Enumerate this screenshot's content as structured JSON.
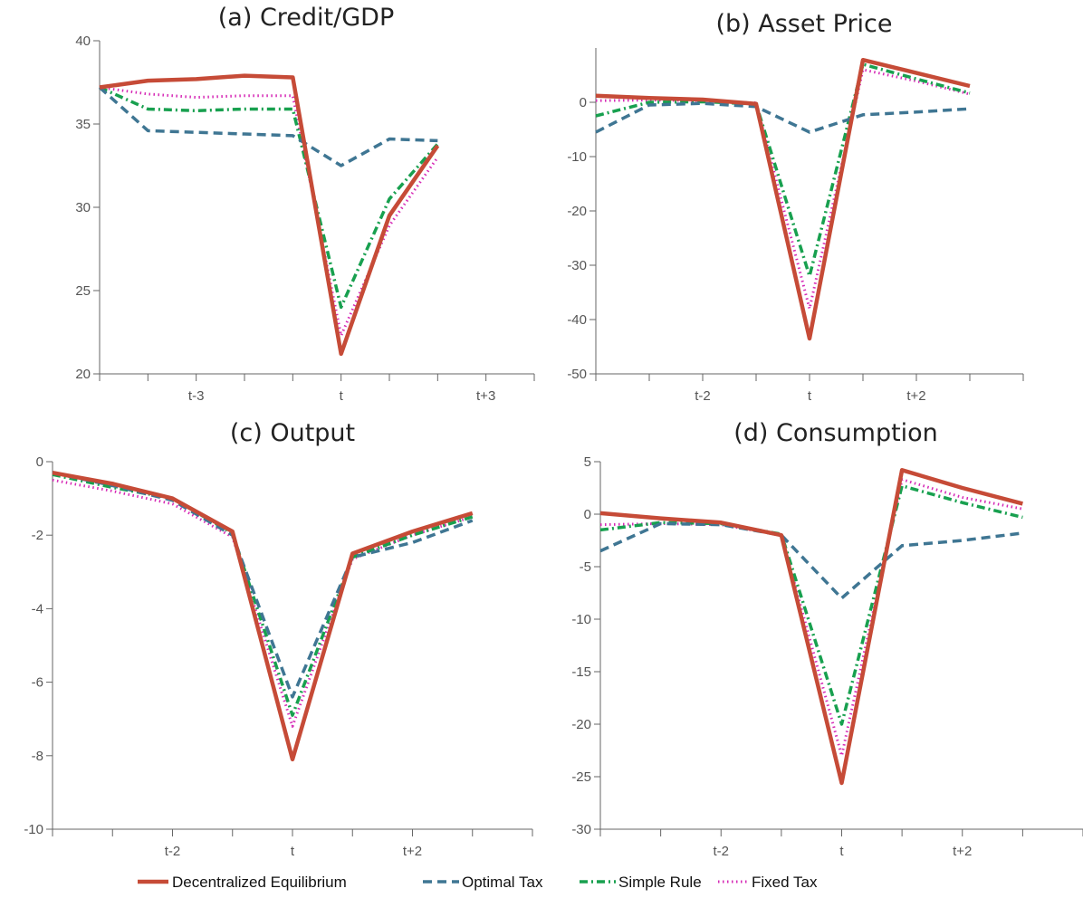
{
  "colors": {
    "decentralized": "#c64b37",
    "optimal": "#3f7693",
    "simple": "#18a04f",
    "fixed": "#d62ab6"
  },
  "legend": [
    {
      "key": "decentralized",
      "label": "Decentralized Equilibrium"
    },
    {
      "key": "optimal",
      "label": "Optimal Tax"
    },
    {
      "key": "simple",
      "label": "Simple Rule"
    },
    {
      "key": "fixed",
      "label": "Fixed Tax"
    }
  ],
  "chart_data": [
    {
      "type": "line",
      "title": "(a) Credit/GDP",
      "x": [
        -5,
        -4,
        -3,
        -2,
        -1,
        0,
        1,
        2,
        3
      ],
      "x_ticks": [
        {
          "x": -3,
          "label": "t-3"
        },
        {
          "x": 0,
          "label": "t"
        },
        {
          "x": 3,
          "label": "t+3"
        }
      ],
      "xlim": [
        -5,
        4
      ],
      "ylim": [
        20,
        40
      ],
      "y_ticks": [
        20,
        25,
        30,
        35,
        40
      ],
      "series": [
        {
          "key": "decentralized",
          "name": "Decentralized Equilibrium",
          "values": [
            37.2,
            37.6,
            37.7,
            37.9,
            37.8,
            21.2,
            29.5,
            33.7,
            null
          ]
        },
        {
          "key": "optimal",
          "name": "Optimal Tax",
          "values": [
            37.2,
            34.6,
            34.5,
            34.4,
            34.3,
            32.5,
            34.1,
            34.0,
            null
          ]
        },
        {
          "key": "simple",
          "name": "Simple Rule",
          "values": [
            37.2,
            35.9,
            35.8,
            35.9,
            35.9,
            24.0,
            30.5,
            33.8,
            null
          ]
        },
        {
          "key": "fixed",
          "name": "Fixed Tax",
          "values": [
            37.2,
            36.8,
            36.6,
            36.7,
            36.7,
            22.3,
            28.9,
            33.0,
            null
          ]
        }
      ]
    },
    {
      "type": "line",
      "title": "(b) Asset Price",
      "x": [
        -4,
        -3,
        -2,
        -1,
        0,
        1,
        2,
        3
      ],
      "x_ticks": [
        {
          "x": -2,
          "label": "t-2"
        },
        {
          "x": 0,
          "label": "t"
        },
        {
          "x": 2,
          "label": "t+2"
        }
      ],
      "xlim": [
        -4,
        4
      ],
      "ylim": [
        -50,
        10
      ],
      "y_ticks": [
        -50,
        -40,
        -30,
        -20,
        -10,
        0
      ],
      "series": [
        {
          "key": "decentralized",
          "name": "Decentralized Equilibrium",
          "values": [
            1.2,
            0.8,
            0.5,
            -0.3,
            -43.5,
            7.8,
            5.4,
            3.0
          ]
        },
        {
          "key": "optimal",
          "name": "Optimal Tax",
          "values": [
            -5.5,
            -0.5,
            -0.2,
            -0.8,
            -5.5,
            -2.3,
            -1.8,
            -1.2
          ]
        },
        {
          "key": "simple",
          "name": "Simple Rule",
          "values": [
            -2.5,
            0.0,
            0.1,
            -0.3,
            -32.0,
            7.0,
            4.3,
            1.7
          ]
        },
        {
          "key": "fixed",
          "name": "Fixed Tax",
          "values": [
            0.3,
            0.4,
            0.3,
            -0.1,
            -38.0,
            6.0,
            3.9,
            1.5
          ]
        }
      ]
    },
    {
      "type": "line",
      "title": "(c) Output",
      "x": [
        -4,
        -3,
        -2,
        -1,
        0,
        1,
        2,
        3
      ],
      "x_ticks": [
        {
          "x": -2,
          "label": "t-2"
        },
        {
          "x": 0,
          "label": "t"
        },
        {
          "x": 2,
          "label": "t+2"
        }
      ],
      "xlim": [
        -4,
        4
      ],
      "ylim": [
        -10,
        0
      ],
      "y_ticks": [
        -10,
        -8,
        -6,
        -4,
        -2,
        0
      ],
      "series": [
        {
          "key": "decentralized",
          "name": "Decentralized Equilibrium",
          "values": [
            -0.3,
            -0.6,
            -1.0,
            -1.9,
            -8.1,
            -2.5,
            -1.9,
            -1.4
          ]
        },
        {
          "key": "optimal",
          "name": "Optimal Tax",
          "values": [
            -0.3,
            -0.65,
            -1.05,
            -2.0,
            -6.4,
            -2.6,
            -2.2,
            -1.6
          ]
        },
        {
          "key": "simple",
          "name": "Simple Rule",
          "values": [
            -0.35,
            -0.7,
            -1.0,
            -1.95,
            -6.9,
            -2.6,
            -2.0,
            -1.5
          ]
        },
        {
          "key": "fixed",
          "name": "Fixed Tax",
          "values": [
            -0.5,
            -0.8,
            -1.15,
            -2.05,
            -7.2,
            -2.65,
            -2.0,
            -1.5
          ]
        }
      ]
    },
    {
      "type": "line",
      "title": "(d) Consumption",
      "x": [
        -4,
        -3,
        -2,
        -1,
        0,
        1,
        2,
        3
      ],
      "x_ticks": [
        {
          "x": -2,
          "label": "t-2"
        },
        {
          "x": 0,
          "label": "t"
        },
        {
          "x": 2,
          "label": "t+2"
        }
      ],
      "xlim": [
        -4,
        4
      ],
      "ylim": [
        -30,
        5
      ],
      "y_ticks": [
        -30,
        -25,
        -20,
        -15,
        -10,
        -5,
        0,
        5
      ],
      "series": [
        {
          "key": "decentralized",
          "name": "Decentralized Equilibrium",
          "values": [
            0.1,
            -0.4,
            -0.8,
            -2.0,
            -25.6,
            4.2,
            2.5,
            1.0
          ]
        },
        {
          "key": "optimal",
          "name": "Optimal Tax",
          "values": [
            -3.5,
            -0.9,
            -1.0,
            -2.0,
            -8.0,
            -3.0,
            -2.5,
            -1.8
          ]
        },
        {
          "key": "simple",
          "name": "Simple Rule",
          "values": [
            -1.5,
            -0.8,
            -0.9,
            -1.9,
            -20.0,
            2.7,
            1.1,
            -0.3
          ]
        },
        {
          "key": "fixed",
          "name": "Fixed Tax",
          "values": [
            -1.0,
            -0.9,
            -1.0,
            -2.0,
            -23.0,
            3.3,
            1.6,
            0.5
          ]
        }
      ]
    }
  ]
}
